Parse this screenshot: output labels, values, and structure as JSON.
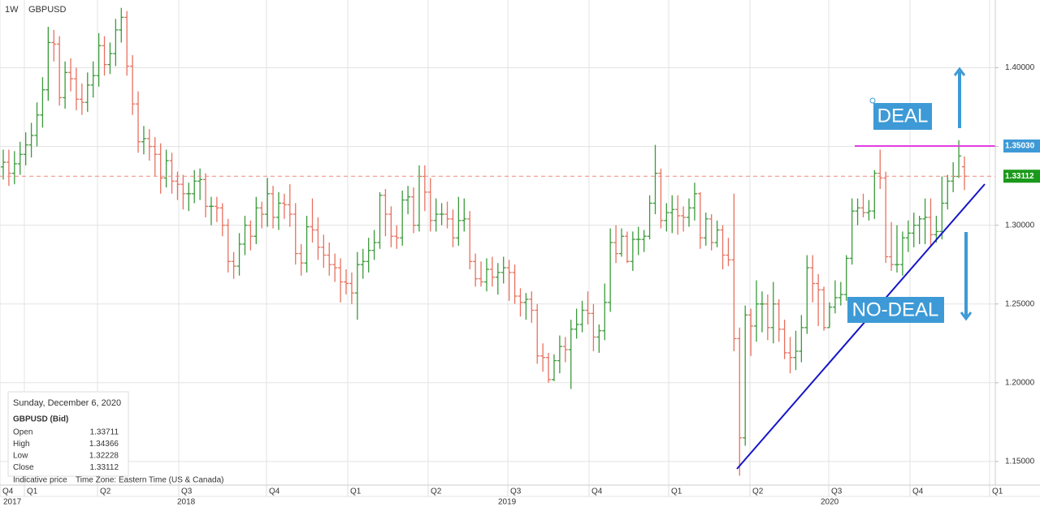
{
  "chart_data": {
    "type": "ohlc",
    "timeframe": "1W",
    "symbol": "GBPUSD",
    "up_color": "#3a9a3a",
    "down_color": "#e8705f",
    "ylim": [
      1.135,
      1.443
    ],
    "yticks": [
      {
        "value": 1.15,
        "label": "1.15000"
      },
      {
        "value": 1.2,
        "label": "1.20000"
      },
      {
        "value": 1.25,
        "label": "1.25000"
      },
      {
        "value": 1.3,
        "label": "1.30000"
      },
      {
        "value": 1.35,
        "label": "1.35000"
      },
      {
        "value": 1.4,
        "label": "1.40000"
      }
    ],
    "grid": true,
    "xticks": [
      "Q4",
      "Q1",
      "Q2",
      "Q3",
      "Q4",
      "Q1",
      "Q2",
      "Q3",
      "Q4",
      "Q1",
      "Q2",
      "Q3",
      "Q4",
      "Q1"
    ],
    "year_labels": [
      "2017",
      "2018",
      "2019",
      "2020"
    ],
    "price_lines": [
      {
        "value": 1.3503,
        "label": "1.35030",
        "color": "#e13ee0",
        "tag_color": "#3d9ad6",
        "dashed": false
      },
      {
        "value": 1.33112,
        "label": "1.33112",
        "color": "#ee8a7e",
        "tag_color": "#1a9a1a",
        "dashed": true
      }
    ],
    "annotations": [
      "DEAL",
      "NO-DEAL"
    ],
    "info_panel": {
      "date": "Sunday, December 6, 2020",
      "title": "GBPUSD (Bid)",
      "rows": [
        [
          "Open",
          "1.33711"
        ],
        [
          "High",
          "1.34366"
        ],
        [
          "Low",
          "1.32228"
        ],
        [
          "Close",
          "1.33112"
        ]
      ]
    },
    "footer": [
      "Indicative price",
      "Time Zone: Eastern Time (US & Canada)"
    ],
    "ohlc": [
      [
        1.337,
        1.348,
        1.329,
        1.34
      ],
      [
        1.34,
        1.348,
        1.325,
        1.333
      ],
      [
        1.333,
        1.347,
        1.326,
        1.339
      ],
      [
        1.339,
        1.353,
        1.332,
        1.345
      ],
      [
        1.345,
        1.359,
        1.338,
        1.351
      ],
      [
        1.351,
        1.365,
        1.343,
        1.357
      ],
      [
        1.357,
        1.378,
        1.35,
        1.37
      ],
      [
        1.37,
        1.394,
        1.362,
        1.386
      ],
      [
        1.386,
        1.426,
        1.379,
        1.416
      ],
      [
        1.416,
        1.424,
        1.404,
        1.415
      ],
      [
        1.415,
        1.42,
        1.376,
        1.381
      ],
      [
        1.381,
        1.404,
        1.374,
        1.397
      ],
      [
        1.397,
        1.406,
        1.385,
        1.393
      ],
      [
        1.393,
        1.4,
        1.373,
        1.38
      ],
      [
        1.38,
        1.39,
        1.37,
        1.378
      ],
      [
        1.378,
        1.397,
        1.372,
        1.389
      ],
      [
        1.389,
        1.404,
        1.381,
        1.395
      ],
      [
        1.395,
        1.422,
        1.388,
        1.414
      ],
      [
        1.414,
        1.42,
        1.395,
        1.402
      ],
      [
        1.402,
        1.416,
        1.396,
        1.409
      ],
      [
        1.409,
        1.431,
        1.401,
        1.424
      ],
      [
        1.424,
        1.438,
        1.416,
        1.432
      ],
      [
        1.432,
        1.436,
        1.395,
        1.401
      ],
      [
        1.401,
        1.408,
        1.37,
        1.377
      ],
      [
        1.377,
        1.385,
        1.346,
        1.353
      ],
      [
        1.353,
        1.363,
        1.345,
        1.355
      ],
      [
        1.355,
        1.361,
        1.341,
        1.35
      ],
      [
        1.35,
        1.356,
        1.331,
        1.345
      ],
      [
        1.345,
        1.352,
        1.32,
        1.33
      ],
      [
        1.33,
        1.348,
        1.324,
        1.341
      ],
      [
        1.341,
        1.346,
        1.32,
        1.328
      ],
      [
        1.328,
        1.334,
        1.316,
        1.326
      ],
      [
        1.326,
        1.332,
        1.31,
        1.32
      ],
      [
        1.32,
        1.327,
        1.309,
        1.32
      ],
      [
        1.32,
        1.335,
        1.314,
        1.328
      ],
      [
        1.328,
        1.336,
        1.316,
        1.329
      ],
      [
        1.329,
        1.333,
        1.305,
        1.312
      ],
      [
        1.312,
        1.318,
        1.3,
        1.312
      ],
      [
        1.312,
        1.318,
        1.302,
        1.311
      ],
      [
        1.311,
        1.314,
        1.293,
        1.3
      ],
      [
        1.3,
        1.304,
        1.27,
        1.277
      ],
      [
        1.277,
        1.283,
        1.266,
        1.274
      ],
      [
        1.274,
        1.295,
        1.268,
        1.288
      ],
      [
        1.288,
        1.306,
        1.281,
        1.3
      ],
      [
        1.3,
        1.303,
        1.284,
        1.293
      ],
      [
        1.293,
        1.318,
        1.288,
        1.311
      ],
      [
        1.311,
        1.315,
        1.298,
        1.307
      ],
      [
        1.307,
        1.33,
        1.299,
        1.32
      ],
      [
        1.32,
        1.325,
        1.298,
        1.305
      ],
      [
        1.305,
        1.321,
        1.297,
        1.314
      ],
      [
        1.314,
        1.32,
        1.304,
        1.313
      ],
      [
        1.313,
        1.326,
        1.299,
        1.307
      ],
      [
        1.307,
        1.314,
        1.275,
        1.282
      ],
      [
        1.282,
        1.288,
        1.268,
        1.276
      ],
      [
        1.276,
        1.306,
        1.27,
        1.299
      ],
      [
        1.299,
        1.317,
        1.289,
        1.297
      ],
      [
        1.297,
        1.305,
        1.278,
        1.286
      ],
      [
        1.286,
        1.294,
        1.273,
        1.281
      ],
      [
        1.281,
        1.289,
        1.268,
        1.275
      ],
      [
        1.275,
        1.282,
        1.264,
        1.273
      ],
      [
        1.273,
        1.279,
        1.251,
        1.264
      ],
      [
        1.264,
        1.272,
        1.256,
        1.263
      ],
      [
        1.263,
        1.27,
        1.25,
        1.257
      ],
      [
        1.257,
        1.283,
        1.24,
        1.275
      ],
      [
        1.275,
        1.285,
        1.266,
        1.277
      ],
      [
        1.277,
        1.292,
        1.27,
        1.284
      ],
      [
        1.284,
        1.297,
        1.278,
        1.289
      ],
      [
        1.289,
        1.321,
        1.285,
        1.319
      ],
      [
        1.319,
        1.323,
        1.293,
        1.307
      ],
      [
        1.307,
        1.312,
        1.286,
        1.293
      ],
      [
        1.293,
        1.3,
        1.285,
        1.292
      ],
      [
        1.292,
        1.322,
        1.287,
        1.316
      ],
      [
        1.316,
        1.325,
        1.307,
        1.318
      ],
      [
        1.318,
        1.324,
        1.295,
        1.3
      ],
      [
        1.3,
        1.338,
        1.296,
        1.331
      ],
      [
        1.331,
        1.338,
        1.309,
        1.321
      ],
      [
        1.321,
        1.33,
        1.296,
        1.303
      ],
      [
        1.303,
        1.317,
        1.296,
        1.307
      ],
      [
        1.307,
        1.314,
        1.3,
        1.307
      ],
      [
        1.307,
        1.315,
        1.298,
        1.304
      ],
      [
        1.304,
        1.31,
        1.286,
        1.292
      ],
      [
        1.292,
        1.318,
        1.287,
        1.303
      ],
      [
        1.303,
        1.317,
        1.296,
        1.304
      ],
      [
        1.304,
        1.309,
        1.272,
        1.277
      ],
      [
        1.277,
        1.282,
        1.261,
        1.266
      ],
      [
        1.266,
        1.277,
        1.261,
        1.264
      ],
      [
        1.264,
        1.279,
        1.258,
        1.272
      ],
      [
        1.272,
        1.28,
        1.261,
        1.267
      ],
      [
        1.267,
        1.276,
        1.256,
        1.27
      ],
      [
        1.27,
        1.28,
        1.263,
        1.273
      ],
      [
        1.273,
        1.278,
        1.252,
        1.27
      ],
      [
        1.27,
        1.275,
        1.25,
        1.255
      ],
      [
        1.255,
        1.26,
        1.242,
        1.251
      ],
      [
        1.251,
        1.257,
        1.24,
        1.253
      ],
      [
        1.253,
        1.258,
        1.238,
        1.246
      ],
      [
        1.246,
        1.25,
        1.212,
        1.217
      ],
      [
        1.217,
        1.225,
        1.207,
        1.216
      ],
      [
        1.216,
        1.219,
        1.2,
        1.202
      ],
      [
        1.202,
        1.218,
        1.201,
        1.214
      ],
      [
        1.214,
        1.23,
        1.206,
        1.223
      ],
      [
        1.223,
        1.229,
        1.213,
        1.221
      ],
      [
        1.221,
        1.24,
        1.196,
        1.234
      ],
      [
        1.234,
        1.247,
        1.228,
        1.237
      ],
      [
        1.237,
        1.252,
        1.232,
        1.246
      ],
      [
        1.246,
        1.258,
        1.237,
        1.244
      ],
      [
        1.244,
        1.25,
        1.22,
        1.229
      ],
      [
        1.229,
        1.237,
        1.219,
        1.233
      ],
      [
        1.233,
        1.263,
        1.227,
        1.251
      ],
      [
        1.251,
        1.298,
        1.245,
        1.289
      ],
      [
        1.289,
        1.3,
        1.276,
        1.282
      ],
      [
        1.282,
        1.298,
        1.28,
        1.293
      ],
      [
        1.293,
        1.296,
        1.276,
        1.277
      ],
      [
        1.277,
        1.296,
        1.271,
        1.291
      ],
      [
        1.291,
        1.299,
        1.281,
        1.291
      ],
      [
        1.291,
        1.297,
        1.283,
        1.293
      ],
      [
        1.293,
        1.319,
        1.291,
        1.314
      ],
      [
        1.314,
        1.351,
        1.307,
        1.333
      ],
      [
        1.333,
        1.336,
        1.298,
        1.303
      ],
      [
        1.303,
        1.314,
        1.296,
        1.308
      ],
      [
        1.308,
        1.319,
        1.295,
        1.31
      ],
      [
        1.31,
        1.319,
        1.294,
        1.306
      ],
      [
        1.306,
        1.312,
        1.296,
        1.305
      ],
      [
        1.305,
        1.317,
        1.299,
        1.311
      ],
      [
        1.311,
        1.327,
        1.303,
        1.32
      ],
      [
        1.32,
        1.321,
        1.285,
        1.292
      ],
      [
        1.292,
        1.308,
        1.287,
        1.304
      ],
      [
        1.304,
        1.307,
        1.284,
        1.289
      ],
      [
        1.289,
        1.303,
        1.286,
        1.297
      ],
      [
        1.297,
        1.3,
        1.272,
        1.281
      ],
      [
        1.281,
        1.292,
        1.274,
        1.278
      ],
      [
        1.278,
        1.32,
        1.22,
        1.228
      ],
      [
        1.228,
        1.235,
        1.141,
        1.165
      ],
      [
        1.165,
        1.249,
        1.16,
        1.243
      ],
      [
        1.243,
        1.247,
        1.217,
        1.236
      ],
      [
        1.236,
        1.265,
        1.226,
        1.25
      ],
      [
        1.25,
        1.258,
        1.232,
        1.25
      ],
      [
        1.25,
        1.256,
        1.227,
        1.235
      ],
      [
        1.235,
        1.264,
        1.225,
        1.25
      ],
      [
        1.25,
        1.253,
        1.226,
        1.234
      ],
      [
        1.234,
        1.24,
        1.215,
        1.219
      ],
      [
        1.219,
        1.229,
        1.206,
        1.216
      ],
      [
        1.216,
        1.233,
        1.208,
        1.22
      ],
      [
        1.22,
        1.243,
        1.213,
        1.235
      ],
      [
        1.235,
        1.281,
        1.231,
        1.273
      ],
      [
        1.273,
        1.281,
        1.251,
        1.263
      ],
      [
        1.263,
        1.269,
        1.236,
        1.259
      ],
      [
        1.259,
        1.261,
        1.233,
        1.235
      ],
      [
        1.235,
        1.251,
        1.235,
        1.248
      ],
      [
        1.248,
        1.265,
        1.244,
        1.254
      ],
      [
        1.254,
        1.264,
        1.249,
        1.256
      ],
      [
        1.256,
        1.281,
        1.252,
        1.279
      ],
      [
        1.279,
        1.317,
        1.275,
        1.309
      ],
      [
        1.309,
        1.317,
        1.3,
        1.311
      ],
      [
        1.311,
        1.32,
        1.305,
        1.308
      ],
      [
        1.308,
        1.316,
        1.303,
        1.309
      ],
      [
        1.309,
        1.335,
        1.304,
        1.333
      ],
      [
        1.333,
        1.348,
        1.323,
        1.33
      ],
      [
        1.33,
        1.334,
        1.276,
        1.28
      ],
      [
        1.28,
        1.302,
        1.271,
        1.275
      ],
      [
        1.275,
        1.3,
        1.27,
        1.275
      ],
      [
        1.275,
        1.296,
        1.268,
        1.292
      ],
      [
        1.292,
        1.303,
        1.283,
        1.295
      ],
      [
        1.295,
        1.308,
        1.286,
        1.3
      ],
      [
        1.3,
        1.306,
        1.288,
        1.304
      ],
      [
        1.304,
        1.317,
        1.288,
        1.305
      ],
      [
        1.305,
        1.317,
        1.286,
        1.294
      ],
      [
        1.294,
        1.306,
        1.289,
        1.296
      ],
      [
        1.296,
        1.331,
        1.291,
        1.314
      ],
      [
        1.314,
        1.332,
        1.31,
        1.328
      ],
      [
        1.328,
        1.34,
        1.321,
        1.331
      ],
      [
        1.331,
        1.354,
        1.33,
        1.344
      ],
      [
        1.33711,
        1.34366,
        1.32228,
        1.33112
      ]
    ]
  }
}
